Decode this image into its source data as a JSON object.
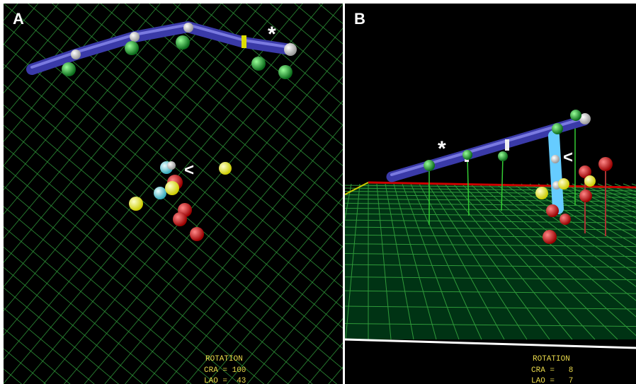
{
  "panels": [
    {
      "label": "A",
      "markers": [
        "*",
        "<"
      ],
      "overlay": {
        "title": "ROTATION",
        "lines": [
          "CRA = 100",
          "LAO =  43"
        ]
      }
    },
    {
      "label": "B",
      "markers": [
        "*",
        "<"
      ],
      "overlay": {
        "title": "ROTATION",
        "lines": [
          "CRA =   8",
          "LAO =   7"
        ]
      }
    }
  ]
}
